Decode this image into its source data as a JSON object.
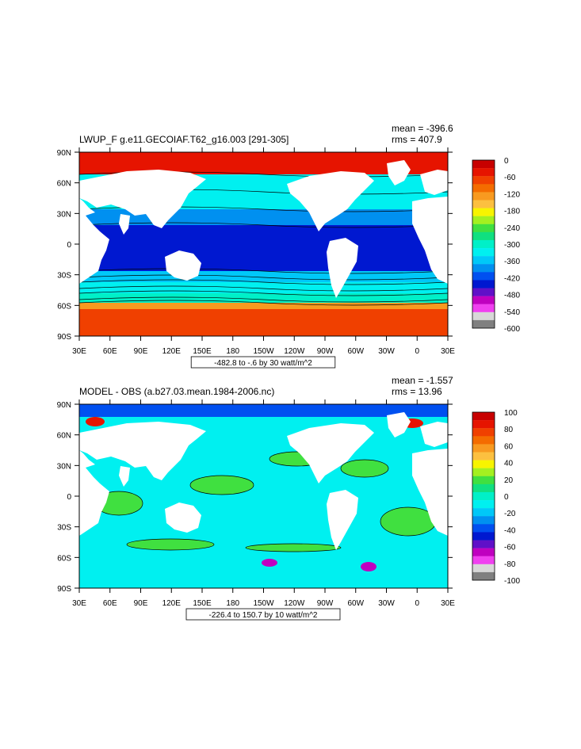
{
  "panels": [
    {
      "title": "LWUP_F g.e11.GECOIAF.T62_g16.003 [291-305]",
      "mean": "mean = -396.6",
      "rms": "rms = 407.9",
      "range_note": "-482.8 to -.6 by 30 watt/m^2",
      "colorbar_labels": [
        "0",
        "-60",
        "-120",
        "-180",
        "-240",
        "-300",
        "-360",
        "-420",
        "-480",
        "-540",
        "-600"
      ],
      "colorbar_colors": [
        "#c80000",
        "#e61400",
        "#f04000",
        "#f46c00",
        "#f89a20",
        "#fcc040",
        "#f8f400",
        "#a4f020",
        "#40e040",
        "#10e080",
        "#00f0c8",
        "#00f0f0",
        "#00c8f8",
        "#0090f0",
        "#0050f0",
        "#0018d0",
        "#6010c8",
        "#c000c0",
        "#f040f0",
        "#d8d8d8",
        "#808080"
      ],
      "field_colors": {
        "arctic": "#e61400",
        "north": "#00f0f0",
        "mid": "#0090f0",
        "tropic": "#0018d0",
        "south1": "#00c8f8",
        "south2": "#00f0f0",
        "south3": "#00f0c8",
        "south4": "#f89a20",
        "antarctic": "#f04000"
      }
    },
    {
      "title": "MODEL - OBS (a.b27.03.mean.1984-2006.nc)",
      "mean": "mean = -1.557",
      "rms": "rms = 13.96",
      "range_note": "-226.4 to 150.7 by 10 watt/m^2",
      "colorbar_labels": [
        "100",
        "80",
        "60",
        "40",
        "20",
        "0",
        "-20",
        "-40",
        "-60",
        "-80",
        "-100"
      ],
      "colorbar_colors": [
        "#c80000",
        "#e61400",
        "#f04000",
        "#f46c00",
        "#f89a20",
        "#fcc040",
        "#f8f400",
        "#a4f020",
        "#40e040",
        "#10e080",
        "#00f0c8",
        "#00f0f0",
        "#00c8f8",
        "#0090f0",
        "#0050f0",
        "#0018d0",
        "#6010c8",
        "#c000c0",
        "#f040f0",
        "#d8d8d8",
        "#808080"
      ],
      "field_colors": {
        "base": "#00f0f0",
        "patch": "#40e040",
        "arctic": "#0050f0",
        "hot": "#e61400",
        "purple": "#c000c0"
      }
    }
  ],
  "lon_labels": [
    "30E",
    "60E",
    "90E",
    "120E",
    "150E",
    "180",
    "150W",
    "120W",
    "90W",
    "60W",
    "30W",
    "0",
    "30E"
  ],
  "lat_labels": [
    "90N",
    "60N",
    "30N",
    "0",
    "30S",
    "60S",
    "90S"
  ]
}
